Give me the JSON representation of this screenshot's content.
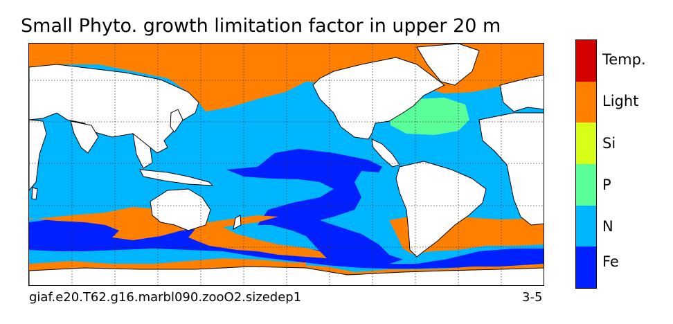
{
  "title": "Small Phyto. growth limitation factor in upper 20 m",
  "caption_left": "giaf.e20.T62.g16.marbl090.zooO2.sizedep1",
  "caption_right": "3-5",
  "colors": {
    "Temp.": "#d40000",
    "Light": "#ff8000",
    "Si": "#d8ff18",
    "P": "#5aff9a",
    "N": "#00b7ff",
    "Fe": "#0020ff",
    "land": "#ffffff"
  },
  "colorbar": {
    "categories": [
      "Temp.",
      "Light",
      "Si",
      "P",
      "N",
      "Fe"
    ]
  },
  "map": {
    "grid": true,
    "projection": "cylindrical, Pacific-centered"
  }
}
